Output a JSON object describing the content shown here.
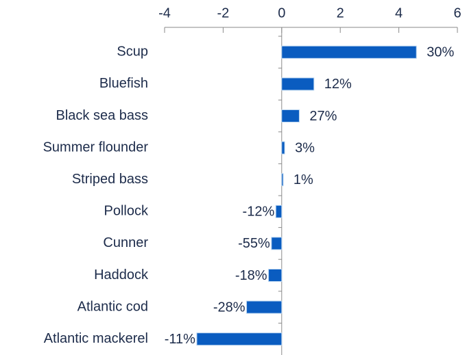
{
  "chart_data": {
    "type": "bar",
    "orientation": "horizontal",
    "categories": [
      "Scup",
      "Bluefish",
      "Black sea bass",
      "Summer flounder",
      "Striped bass",
      "Pollock",
      "Cunner",
      "Haddock",
      "Atlantic cod",
      "Atlantic mackerel"
    ],
    "values": [
      4.6,
      1.1,
      0.6,
      0.1,
      0.05,
      -0.2,
      -0.35,
      -0.45,
      -1.2,
      -2.9
    ],
    "annotations": [
      "30%",
      "12%",
      "27%",
      "3%",
      "1%",
      "-12%",
      "-55%",
      "-18%",
      "-28%",
      "-11%"
    ],
    "color": "#0a5cc0",
    "xlim": [
      -4,
      6
    ],
    "xticks": [
      -4,
      -2,
      0,
      2,
      4,
      6
    ]
  }
}
